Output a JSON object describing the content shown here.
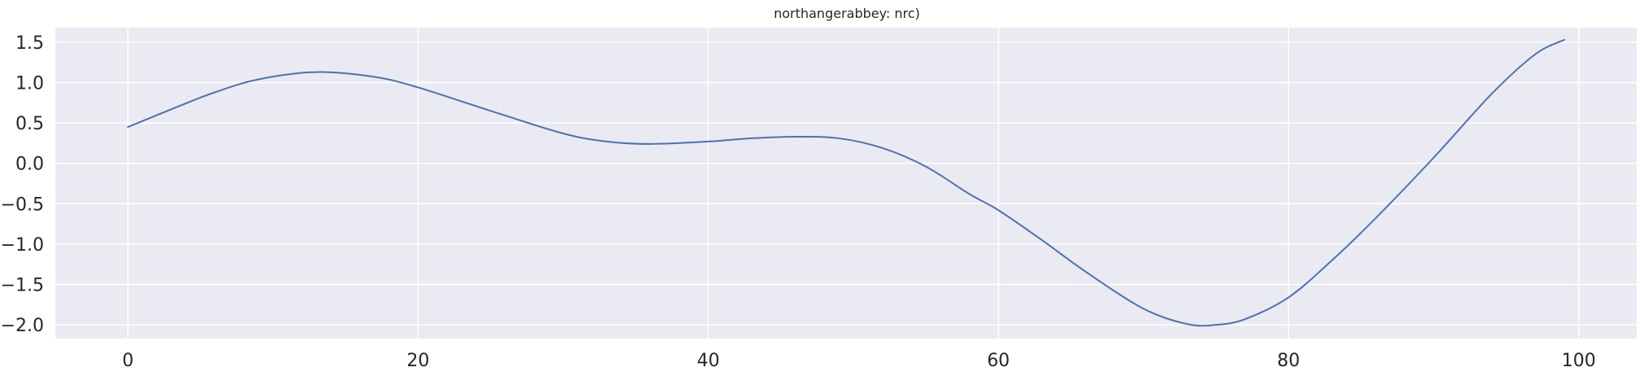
{
  "chart_data": {
    "type": "line",
    "title": "northangerabbey: nrc)",
    "xlabel": "",
    "ylabel": "",
    "xlim": [
      -5,
      104
    ],
    "ylim": [
      -2.17,
      1.68
    ],
    "grid": true,
    "legend": "none",
    "x_ticks": [
      0,
      20,
      40,
      60,
      80,
      100
    ],
    "y_ticks": [
      1.5,
      1.0,
      0.5,
      0.0,
      -0.5,
      -1.0,
      -1.5,
      -2.0
    ],
    "x_tick_labels": [
      "0",
      "20",
      "40",
      "60",
      "80",
      "100"
    ],
    "y_tick_labels": [
      "1.5",
      "1.0",
      "0.5",
      "0.0",
      "−0.5",
      "−1.0",
      "−1.5",
      "−2.0"
    ],
    "series": [
      {
        "x": [
          0,
          3,
          6,
          9,
          13,
          17,
          20,
          25,
          30,
          33,
          36,
          40,
          43,
          46,
          49,
          52,
          55,
          58,
          60,
          63,
          66,
          70,
          73,
          75,
          77,
          80,
          83,
          86,
          90,
          94,
          97,
          99
        ],
        "y": [
          0.45,
          0.67,
          0.88,
          1.04,
          1.13,
          1.07,
          0.94,
          0.65,
          0.37,
          0.27,
          0.24,
          0.27,
          0.31,
          0.33,
          0.31,
          0.19,
          -0.04,
          -0.38,
          -0.58,
          -0.95,
          -1.34,
          -1.8,
          -1.99,
          -2.0,
          -1.93,
          -1.66,
          -1.2,
          -0.68,
          0.07,
          0.86,
          1.35,
          1.53
        ],
        "color": "#4c72b0"
      }
    ]
  },
  "colors": {
    "plot_background": "#eaeaf2",
    "grid": "#ffffff",
    "line": "#4c72b0",
    "text": "#262626"
  }
}
